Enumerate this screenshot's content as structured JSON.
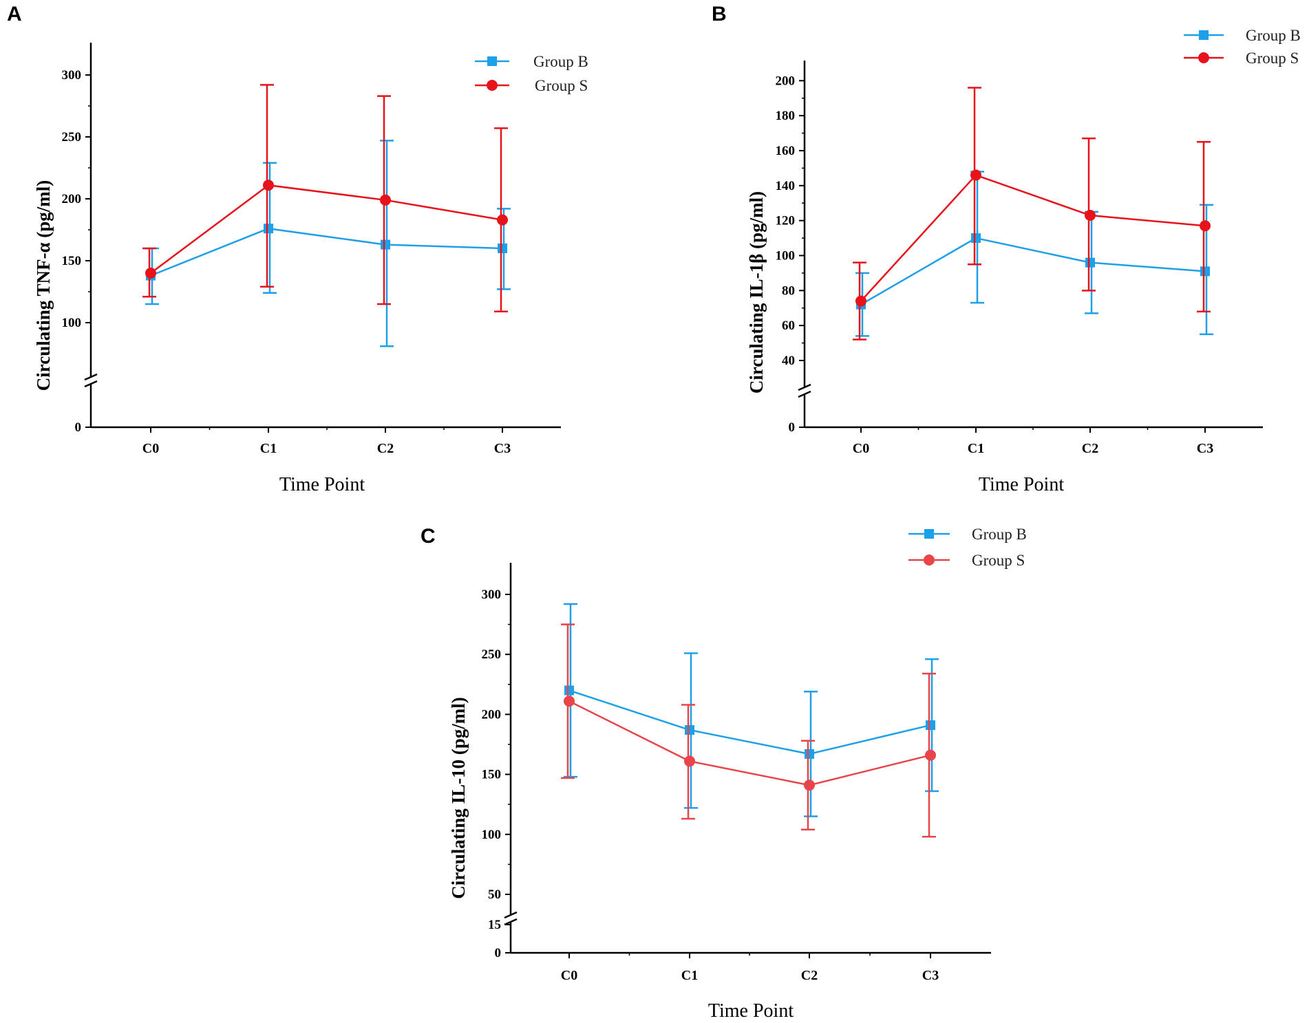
{
  "figure": {
    "background": "#ffffff"
  },
  "chart_data": [
    {
      "id": "A",
      "type": "line",
      "panel_label": "A",
      "title": "",
      "xlabel": "Time Point",
      "ylabel": "Circulating TNF-α (pg/ml)",
      "categories": [
        "C0",
        "C1",
        "C2",
        "C3"
      ],
      "axis_break": true,
      "yticks": [
        0,
        100,
        150,
        200,
        250,
        300
      ],
      "ylim": [
        0,
        325
      ],
      "legend": {
        "position": "top-center"
      },
      "series": [
        {
          "name": "Group B",
          "color": "#1ea0e8",
          "marker": "square",
          "values": [
            138,
            176,
            163,
            160
          ],
          "err_low": [
            115,
            124,
            81,
            127
          ],
          "err_high": [
            160,
            229,
            247,
            192
          ]
        },
        {
          "name": "Group S",
          "color": "#e8131a",
          "marker": "circle",
          "values": [
            140,
            211,
            199,
            183
          ],
          "err_low": [
            121,
            129,
            115,
            109
          ],
          "err_high": [
            160,
            292,
            283,
            257
          ]
        }
      ]
    },
    {
      "id": "B",
      "type": "line",
      "panel_label": "B",
      "title": "",
      "xlabel": "Time Point",
      "ylabel": "Circulating IL-1β (pg/ml)",
      "categories": [
        "C0",
        "C1",
        "C2",
        "C3"
      ],
      "axis_break": true,
      "yticks": [
        0,
        40,
        60,
        80,
        100,
        120,
        140,
        160,
        180,
        200
      ],
      "ylim": [
        0,
        210
      ],
      "legend": {
        "position": "top-right"
      },
      "series": [
        {
          "name": "Group B",
          "color": "#1ea0e8",
          "marker": "square",
          "values": [
            72,
            110,
            96,
            91
          ],
          "err_low": [
            54,
            73,
            67,
            55
          ],
          "err_high": [
            90,
            148,
            125,
            129
          ]
        },
        {
          "name": "Group S",
          "color": "#e8131a",
          "marker": "circle",
          "values": [
            74,
            146,
            123,
            117
          ],
          "err_low": [
            52,
            95,
            80,
            68
          ],
          "err_high": [
            96,
            196,
            167,
            165
          ]
        }
      ]
    },
    {
      "id": "C",
      "type": "line",
      "panel_label": "C",
      "title": "",
      "xlabel": "Time Point",
      "ylabel": "Circulating IL-10 (pg/ml)",
      "categories": [
        "C0",
        "C1",
        "C2",
        "C3"
      ],
      "axis_break": true,
      "yticks": [
        0,
        15,
        50,
        100,
        150,
        200,
        250,
        300
      ],
      "ylim": [
        0,
        325
      ],
      "legend": {
        "position": "top-right"
      },
      "series": [
        {
          "name": "Group B",
          "color": "#1ea0e8",
          "marker": "square",
          "values": [
            220,
            187,
            167,
            191
          ],
          "err_low": [
            148,
            122,
            115,
            136
          ],
          "err_high": [
            292,
            251,
            219,
            246
          ]
        },
        {
          "name": "Group S",
          "color": "#e8454b",
          "marker": "circle",
          "values": [
            211,
            161,
            141,
            166
          ],
          "err_low": [
            147,
            113,
            104,
            98
          ],
          "err_high": [
            275,
            208,
            178,
            234
          ]
        }
      ]
    }
  ]
}
